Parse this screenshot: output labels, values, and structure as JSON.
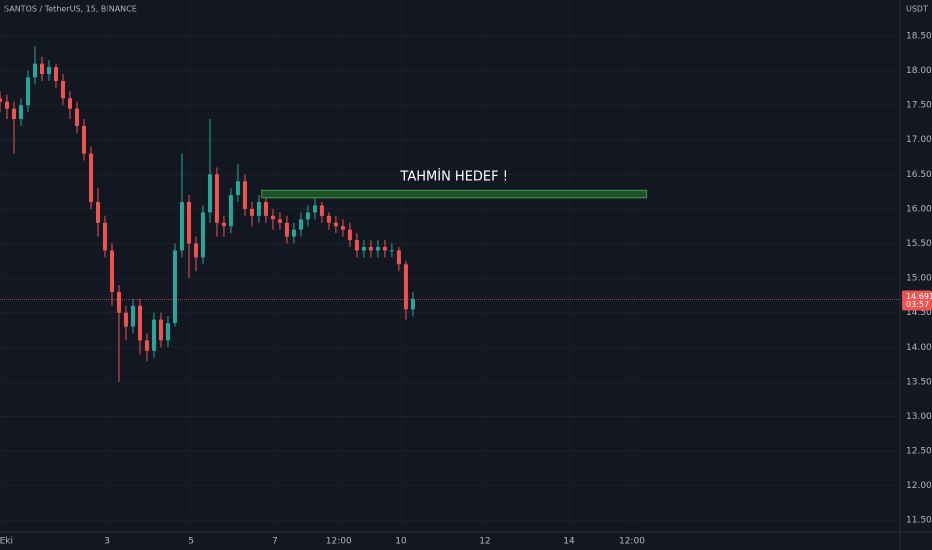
{
  "chart_data": {
    "type": "candlestick",
    "title": "SANTOS / TetherUS, 15, BINANCE",
    "y_unit": "USDT",
    "annotation": "TAHMİN HEDEF !",
    "target_zone": {
      "x": [
        37.4,
        92.4
      ],
      "y": [
        16.16,
        16.27
      ],
      "color": "#1e5128"
    },
    "last_price": 14.691,
    "countdown": "03:57",
    "up_color": "#26a69a",
    "down_color": "#ef5350",
    "grid": true,
    "xlim": [
      0,
      128.6
    ],
    "ylim": [
      11.33,
      19.02
    ],
    "xticks": [
      {
        "value": 0.9,
        "label": "Eki"
      },
      {
        "value": 15.3,
        "label": "3"
      },
      {
        "value": 27.3,
        "label": "5"
      },
      {
        "value": 39.3,
        "label": "7"
      },
      {
        "value": 48.4,
        "label": "12:00"
      },
      {
        "value": 57.3,
        "label": "10"
      },
      {
        "value": 69.3,
        "label": "12"
      },
      {
        "value": 81.3,
        "label": "14"
      },
      {
        "value": 90.3,
        "label": "12:00"
      }
    ],
    "yticks": [
      {
        "value": 11.5,
        "label": "11.500"
      },
      {
        "value": 12,
        "label": "12.000"
      },
      {
        "value": 12.5,
        "label": "12.500"
      },
      {
        "value": 13,
        "label": "13.000"
      },
      {
        "value": 13.5,
        "label": "13.500"
      },
      {
        "value": 14,
        "label": "14.000"
      },
      {
        "value": 14.5,
        "label": "14.500"
      },
      {
        "value": 15,
        "label": "15.000"
      },
      {
        "value": 15.5,
        "label": "15.500"
      },
      {
        "value": 16,
        "label": "16.000"
      },
      {
        "value": 16.5,
        "label": "16.500"
      },
      {
        "value": 17,
        "label": "17.000"
      },
      {
        "value": 17.5,
        "label": "17.500"
      },
      {
        "value": 18,
        "label": "18.000"
      },
      {
        "value": 18.5,
        "label": "18.500"
      }
    ],
    "x": [
      0,
      1,
      2,
      3,
      4,
      5,
      6,
      7,
      8,
      9,
      10,
      11,
      12,
      13,
      14,
      15,
      16,
      17,
      18,
      19,
      20,
      21,
      22,
      23,
      24,
      25,
      26,
      27,
      28,
      29,
      30,
      31,
      32,
      33,
      34,
      35,
      36,
      37,
      38,
      39,
      40,
      41,
      42,
      43,
      44,
      45,
      46,
      47,
      48,
      49,
      50,
      51,
      52,
      53,
      54,
      55,
      56,
      57,
      58,
      59
    ],
    "open": [
      17.6,
      17.55,
      17.45,
      17.3,
      17.5,
      17.9,
      18.1,
      17.95,
      18.05,
      17.85,
      17.6,
      17.45,
      17.2,
      16.8,
      16.1,
      15.8,
      15.4,
      14.8,
      14.5,
      14.3,
      14.6,
      14.1,
      13.95,
      14.4,
      14.1,
      14.35,
      15.4,
      16.1,
      15.5,
      15.3,
      15.95,
      16.5,
      15.8,
      15.75,
      16.2,
      16.4,
      16.0,
      15.9,
      16.1,
      15.9,
      15.85,
      15.8,
      15.6,
      15.7,
      15.85,
      15.95,
      16.05,
      15.9,
      15.8,
      15.75,
      15.7,
      15.55,
      15.4,
      15.45,
      15.4,
      15.45,
      15.4,
      15.4,
      15.2,
      14.55
    ],
    "high": [
      17.7,
      17.65,
      17.55,
      17.6,
      18.0,
      18.35,
      18.2,
      18.15,
      18.1,
      17.95,
      17.7,
      17.55,
      17.3,
      16.9,
      16.3,
      15.9,
      15.5,
      14.9,
      14.6,
      14.7,
      14.7,
      14.2,
      14.5,
      14.5,
      14.45,
      15.5,
      16.8,
      16.2,
      15.6,
      16.05,
      17.3,
      16.6,
      15.9,
      16.3,
      16.65,
      16.5,
      16.1,
      16.2,
      16.15,
      16.0,
      15.95,
      15.9,
      15.8,
      15.95,
      16.05,
      16.15,
      16.1,
      15.95,
      15.9,
      15.85,
      15.8,
      15.65,
      15.55,
      15.55,
      15.55,
      15.55,
      15.5,
      15.45,
      15.25,
      14.8
    ],
    "low": [
      17.4,
      17.3,
      16.8,
      17.2,
      17.4,
      17.8,
      17.85,
      17.85,
      17.75,
      17.5,
      17.3,
      17.1,
      16.7,
      16.0,
      15.6,
      15.3,
      14.6,
      13.5,
      14.1,
      14.2,
      13.9,
      13.8,
      13.85,
      14.0,
      14.0,
      14.3,
      15.3,
      15.0,
      15.1,
      15.2,
      15.8,
      15.6,
      15.6,
      15.65,
      16.1,
      15.9,
      15.75,
      15.8,
      15.8,
      15.7,
      15.7,
      15.5,
      15.5,
      15.6,
      15.75,
      15.85,
      15.8,
      15.7,
      15.65,
      15.6,
      15.45,
      15.3,
      15.3,
      15.3,
      15.3,
      15.3,
      15.3,
      15.1,
      14.4,
      14.45
    ],
    "close": [
      17.55,
      17.45,
      17.3,
      17.5,
      17.9,
      18.1,
      17.95,
      18.05,
      17.85,
      17.6,
      17.45,
      17.2,
      16.8,
      16.1,
      15.8,
      15.4,
      14.8,
      14.5,
      14.3,
      14.6,
      14.1,
      13.95,
      14.4,
      14.1,
      14.35,
      15.4,
      16.1,
      15.5,
      15.3,
      15.95,
      16.5,
      15.8,
      15.75,
      16.2,
      16.4,
      16.0,
      15.9,
      16.1,
      15.9,
      15.85,
      15.8,
      15.6,
      15.7,
      15.85,
      15.95,
      16.05,
      15.9,
      15.8,
      15.75,
      15.7,
      15.55,
      15.4,
      15.45,
      15.4,
      15.45,
      15.4,
      15.4,
      15.2,
      14.55,
      14.7
    ]
  }
}
